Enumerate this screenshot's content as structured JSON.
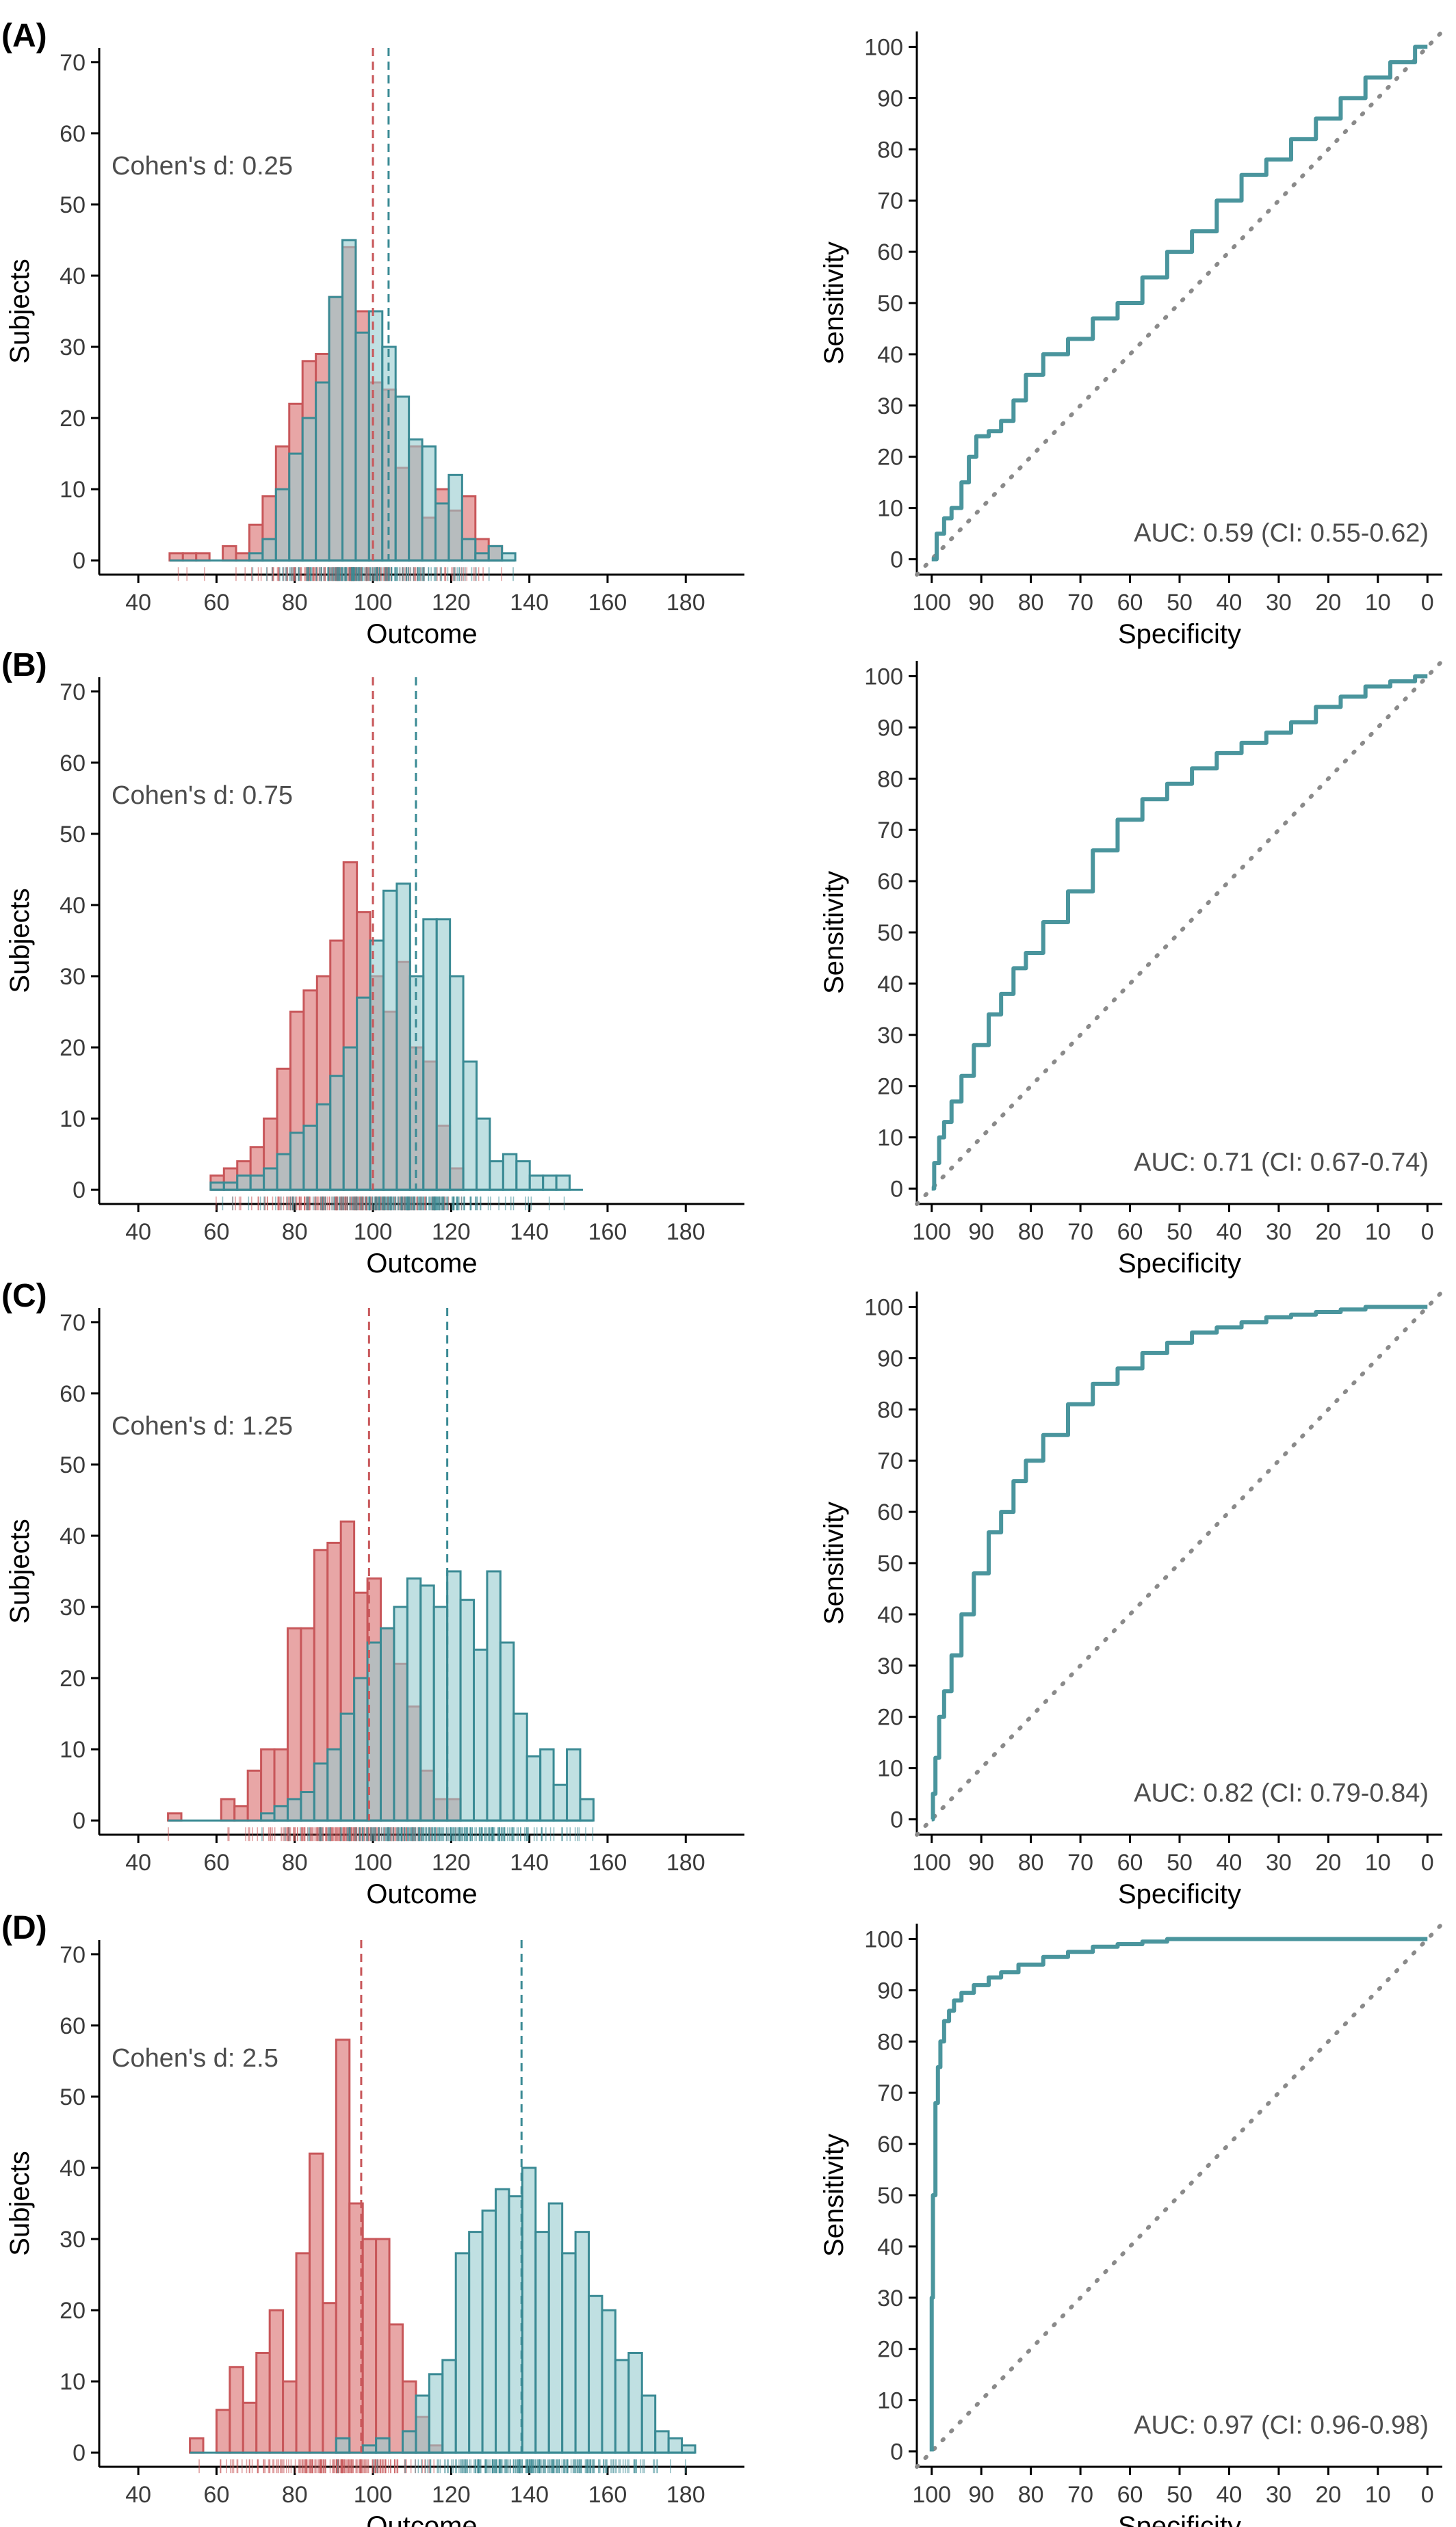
{
  "colors": {
    "group1": "#c8575a",
    "group1_fill": "#e8a6a6",
    "group2": "#3a8a94",
    "group2_fill": "#96cbcf",
    "roc_line": "#4a959d",
    "diagonal": "#8a8a8a"
  },
  "chart_data": [
    {
      "panel": "(A)",
      "type": "bar",
      "annotation": "Cohen's d: 0.25",
      "xlabel": "Outcome",
      "ylabel": "Subjects",
      "xlim": [
        30,
        195
      ],
      "ylim": [
        -2,
        72
      ],
      "xticks": [
        40,
        60,
        80,
        100,
        120,
        140,
        160,
        180
      ],
      "yticks": [
        0,
        10,
        20,
        30,
        40,
        50,
        60,
        70
      ],
      "bin_start": 48,
      "bin_width": 3.4,
      "series": [
        {
          "group": 1,
          "mean": 100,
          "values": [
            1,
            1,
            1,
            0,
            2,
            1,
            5,
            9,
            16,
            22,
            28,
            29,
            37,
            44,
            35,
            25,
            24,
            13,
            16,
            6,
            10,
            7,
            9,
            3,
            2,
            0
          ]
        },
        {
          "group": 2,
          "mean": 104,
          "values": [
            0,
            0,
            0,
            0,
            0,
            0,
            1,
            3,
            10,
            15,
            20,
            25,
            37,
            45,
            32,
            35,
            30,
            23,
            17,
            16,
            8,
            12,
            3,
            1,
            2,
            1
          ]
        }
      ]
    },
    {
      "panel": "ROC-A",
      "type": "line",
      "annotation": "AUC: 0.59 (CI: 0.55-0.62)",
      "xlabel": "Specificity",
      "ylabel": "Sensitivity",
      "xlim": [
        103,
        -3
      ],
      "ylim": [
        -3,
        103
      ],
      "xticks": [
        100,
        90,
        80,
        70,
        60,
        50,
        40,
        30,
        20,
        10,
        0
      ],
      "yticks": [
        0,
        10,
        20,
        30,
        40,
        50,
        60,
        70,
        80,
        90,
        100
      ],
      "x": [
        100,
        98,
        97,
        95,
        93,
        92,
        90,
        87,
        85,
        82,
        80,
        75,
        70,
        65,
        60,
        55,
        50,
        45,
        40,
        35,
        30,
        25,
        20,
        15,
        10,
        5,
        0
      ],
      "y": [
        0,
        5,
        8,
        10,
        15,
        20,
        24,
        25,
        27,
        31,
        36,
        40,
        43,
        47,
        50,
        55,
        60,
        64,
        70,
        75,
        78,
        82,
        86,
        90,
        94,
        97,
        100
      ]
    },
    {
      "panel": "(B)",
      "type": "bar",
      "annotation": "Cohen's d: 0.75",
      "xlabel": "Outcome",
      "ylabel": "Subjects",
      "xlim": [
        30,
        195
      ],
      "ylim": [
        -2,
        72
      ],
      "xticks": [
        40,
        60,
        80,
        100,
        120,
        140,
        160,
        180
      ],
      "yticks": [
        0,
        10,
        20,
        30,
        40,
        50,
        60,
        70
      ],
      "bin_start": 58.5,
      "bin_width": 3.4,
      "series": [
        {
          "group": 1,
          "mean": 100,
          "values": [
            2,
            3,
            4,
            6,
            10,
            17,
            25,
            28,
            30,
            35,
            46,
            39,
            30,
            25,
            32,
            20,
            18,
            9,
            3,
            0,
            0,
            0,
            0,
            0,
            0,
            0,
            0,
            0
          ]
        },
        {
          "group": 2,
          "mean": 111,
          "values": [
            1,
            1,
            2,
            2,
            3,
            5,
            8,
            9,
            12,
            16,
            20,
            27,
            35,
            42,
            43,
            30,
            38,
            38,
            30,
            18,
            10,
            4,
            5,
            4,
            2,
            2,
            2,
            0
          ]
        }
      ]
    },
    {
      "panel": "ROC-B",
      "type": "line",
      "annotation": "AUC: 0.71 (CI: 0.67-0.74)",
      "xlabel": "Specificity",
      "ylabel": "Sensitivity",
      "xlim": [
        103,
        -3
      ],
      "ylim": [
        -3,
        103
      ],
      "xticks": [
        100,
        90,
        80,
        70,
        60,
        50,
        40,
        30,
        20,
        10,
        0
      ],
      "yticks": [
        0,
        10,
        20,
        30,
        40,
        50,
        60,
        70,
        80,
        90,
        100
      ],
      "x": [
        100,
        99,
        98,
        97,
        95,
        93,
        90,
        87,
        85,
        82,
        80,
        75,
        70,
        65,
        60,
        55,
        50,
        45,
        40,
        35,
        30,
        25,
        20,
        15,
        10,
        5,
        0
      ],
      "y": [
        0,
        5,
        10,
        13,
        17,
        22,
        28,
        34,
        38,
        43,
        46,
        52,
        58,
        66,
        72,
        76,
        79,
        82,
        85,
        87,
        89,
        91,
        94,
        96,
        98,
        99,
        100
      ]
    },
    {
      "panel": "(C)",
      "type": "bar",
      "annotation": "Cohen's d: 1.25",
      "xlabel": "Outcome",
      "ylabel": "Subjects",
      "xlim": [
        30,
        195
      ],
      "ylim": [
        -2,
        72
      ],
      "xticks": [
        40,
        60,
        80,
        100,
        120,
        140,
        160,
        180
      ],
      "yticks": [
        0,
        10,
        20,
        30,
        40,
        50,
        60,
        70
      ],
      "bin_start": 47.6,
      "bin_width": 3.4,
      "series": [
        {
          "group": 1,
          "mean": 99,
          "values": [
            1,
            0,
            0,
            0,
            3,
            2,
            7,
            10,
            10,
            27,
            27,
            38,
            39,
            42,
            32,
            34,
            27,
            22,
            16,
            7,
            3,
            3,
            0,
            0,
            0,
            0,
            0,
            0,
            0,
            0,
            0,
            0
          ]
        },
        {
          "group": 2,
          "mean": 119,
          "values": [
            0,
            0,
            0,
            0,
            0,
            0,
            0,
            1,
            2,
            3,
            4,
            8,
            10,
            15,
            20,
            25,
            27,
            30,
            34,
            33,
            30,
            35,
            31,
            24,
            35,
            25,
            15,
            9,
            10,
            5,
            10,
            3
          ]
        }
      ]
    },
    {
      "panel": "ROC-C",
      "type": "line",
      "annotation": "AUC: 0.82 (CI: 0.79-0.84)",
      "xlabel": "Specificity",
      "ylabel": "Sensitivity",
      "xlim": [
        103,
        -3
      ],
      "ylim": [
        -3,
        103
      ],
      "xticks": [
        100,
        90,
        80,
        70,
        60,
        50,
        40,
        30,
        20,
        10,
        0
      ],
      "yticks": [
        0,
        10,
        20,
        30,
        40,
        50,
        60,
        70,
        80,
        90,
        100
      ],
      "x": [
        100,
        99.5,
        99,
        98,
        97,
        95,
        93,
        90,
        87,
        85,
        82,
        80,
        75,
        70,
        65,
        60,
        55,
        50,
        45,
        40,
        35,
        30,
        25,
        20,
        15,
        10,
        5,
        0
      ],
      "y": [
        0,
        5,
        12,
        20,
        25,
        32,
        40,
        48,
        56,
        60,
        66,
        70,
        75,
        81,
        85,
        88,
        91,
        93,
        95,
        96,
        97,
        98,
        98.5,
        99,
        99.5,
        100,
        100,
        100
      ]
    },
    {
      "panel": "(D)",
      "type": "bar",
      "annotation": "Cohen's d: 2.5",
      "xlabel": "Outcome",
      "ylabel": "Subjects",
      "xlim": [
        30,
        195
      ],
      "ylim": [
        -2,
        72
      ],
      "xticks": [
        40,
        60,
        80,
        100,
        120,
        140,
        160,
        180
      ],
      "yticks": [
        0,
        10,
        20,
        30,
        40,
        50,
        60,
        70
      ],
      "bin_start": 53.2,
      "bin_width": 3.4,
      "series": [
        {
          "group": 1,
          "mean": 97,
          "values": [
            2,
            0,
            6,
            12,
            7,
            14,
            20,
            10,
            28,
            42,
            21,
            58,
            35,
            30,
            30,
            18,
            10,
            5,
            1,
            0,
            0,
            0,
            0,
            0,
            0,
            0,
            0,
            0,
            0,
            0,
            0,
            0,
            0,
            0,
            0,
            0,
            0,
            0
          ]
        },
        {
          "group": 2,
          "mean": 138,
          "values": [
            0,
            0,
            0,
            0,
            0,
            0,
            0,
            0,
            0,
            0,
            0,
            2,
            0,
            1,
            2,
            0,
            3,
            8,
            11,
            13,
            28,
            31,
            34,
            37,
            36,
            40,
            31,
            35,
            28,
            31,
            22,
            20,
            13,
            14,
            8,
            3,
            2,
            1
          ]
        }
      ]
    },
    {
      "panel": "ROC-D",
      "type": "line",
      "annotation": "AUC: 0.97 (CI: 0.96-0.98)",
      "xlabel": "Specificity",
      "ylabel": "Sensitivity",
      "xlim": [
        103,
        -3
      ],
      "ylim": [
        -3,
        103
      ],
      "xticks": [
        100,
        90,
        80,
        70,
        60,
        50,
        40,
        30,
        20,
        10,
        0
      ],
      "yticks": [
        0,
        10,
        20,
        30,
        40,
        50,
        60,
        70,
        80,
        90,
        100
      ],
      "x": [
        100,
        100,
        99.5,
        99,
        98.5,
        98,
        97,
        96,
        95,
        93,
        90,
        87,
        85,
        80,
        75,
        70,
        65,
        60,
        55,
        50,
        40,
        30,
        20,
        10,
        0
      ],
      "y": [
        0,
        30,
        50,
        68,
        75,
        80,
        84,
        86,
        88,
        89.5,
        91,
        92.5,
        93.5,
        95,
        96.5,
        97.5,
        98.5,
        99,
        99.5,
        100,
        100,
        100,
        100,
        100,
        100
      ]
    }
  ]
}
